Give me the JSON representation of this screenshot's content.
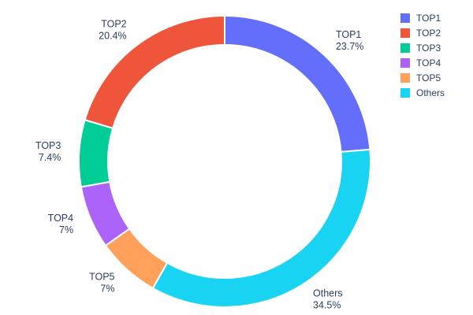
{
  "chart_data": {
    "type": "pie",
    "subtype": "donut",
    "hole": 0.8,
    "title": "",
    "labels": [
      "TOP1",
      "TOP2",
      "TOP3",
      "TOP4",
      "TOP5",
      "Others"
    ],
    "values": [
      23.7,
      20.4,
      7.4,
      7,
      7,
      34.5
    ],
    "percent_labels": [
      "23.7%",
      "20.4%",
      "7.4%",
      "7%",
      "7%",
      "34.5%"
    ],
    "colors": [
      "#636efa",
      "#ef553b",
      "#00cc96",
      "#ab63fa",
      "#ffa15a",
      "#19d3f3"
    ],
    "draw_order": [
      "TOP1",
      "Others",
      "TOP5",
      "TOP4",
      "TOP3",
      "TOP2"
    ],
    "start_angle_deg_clockwise_from_top": 0,
    "legend": [
      "TOP1",
      "TOP2",
      "TOP3",
      "TOP4",
      "TOP5",
      "Others"
    ],
    "legend_position": "top-right",
    "labels_outside": true,
    "text_color": "#2a3f5f",
    "background": "#ffffff"
  }
}
